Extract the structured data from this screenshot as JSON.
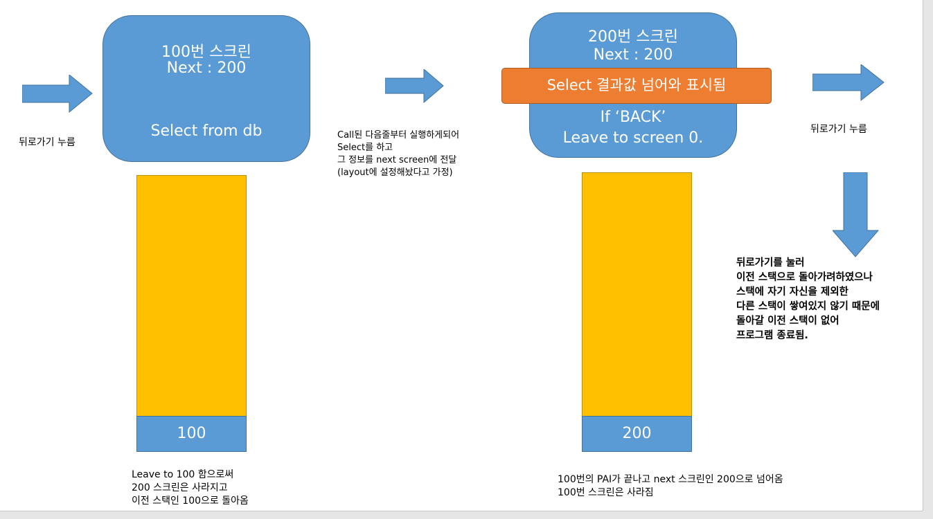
{
  "colors": {
    "box": "#5b9bd5",
    "bar": "#ffc000",
    "highlight": "#ed7d31"
  },
  "screen100": {
    "title": "100번 스크린",
    "next": "Next : 200",
    "action": "Select from db",
    "stack_label": "100"
  },
  "screen200": {
    "title": "200번 스크린",
    "next": "Next : 200",
    "highlight": "Select 결과값 넘어와 표시됨",
    "cond": "If ‘BACK’",
    "leave": "Leave to screen 0.",
    "stack_label": "200"
  },
  "notes": {
    "back_left": "뒤로가기 누름",
    "back_right": "뒤로가기 누름",
    "call": [
      "Call된 다음줄부터 실행하게되어",
      "Select를 하고",
      "그 정보를 next screen에 전달",
      "(layout에 설정해놨다고 가정)"
    ],
    "bottom_left": [
      "Leave to 100 함으로써",
      "200 스크린은 사라지고",
      "이전 스택인 100으로 돌아옴"
    ],
    "bottom_right": [
      "100번의 PAI가 끝나고 next 스크린인 200으로 넘어옴",
      "100번 스크린은 사라짐"
    ],
    "result": [
      "뒤로가기를 눌러",
      "이전 스택으로 돌아가려하였으나",
      "스택에 자기 자신을 제외한",
      "다른 스택이 쌓여있지 않기 때문에",
      "돌아갈 이전 스택이 없어",
      "프로그램 종료됨."
    ]
  }
}
